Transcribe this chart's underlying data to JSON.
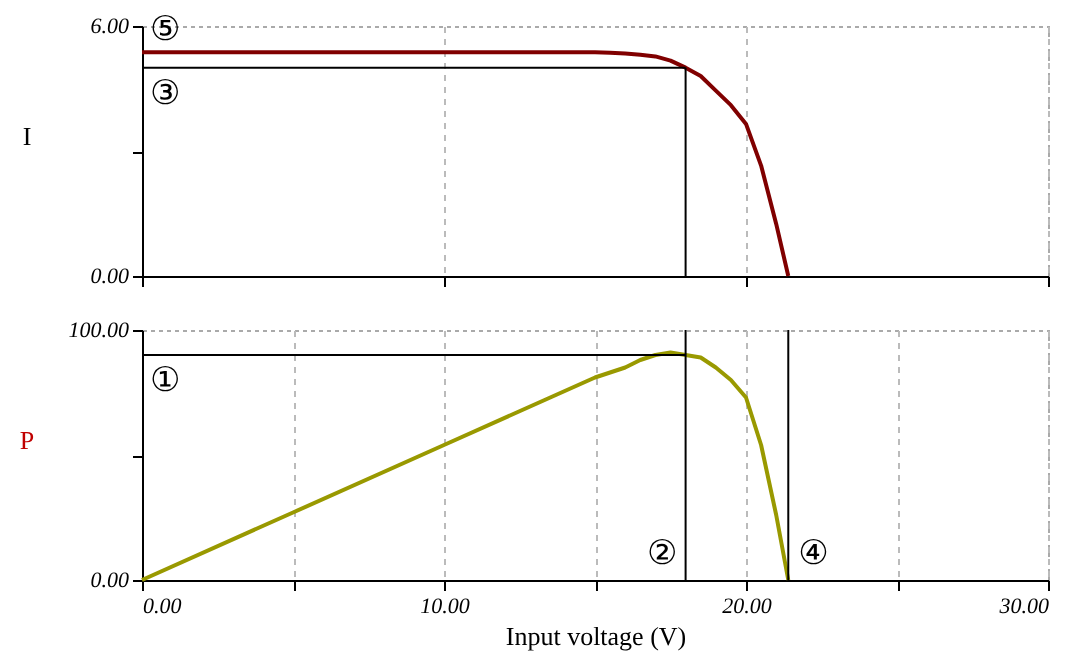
{
  "chart_data": [
    {
      "type": "line",
      "ylabel": "I",
      "xlim": [
        0,
        30
      ],
      "xticks": [
        {
          "value": 0,
          "label": null
        },
        {
          "value": 10,
          "label": null
        },
        {
          "value": 20,
          "label": null
        },
        {
          "value": 30,
          "label": null
        }
      ],
      "ylim": [
        0,
        6
      ],
      "yticks": [
        {
          "value": 0,
          "label": "0.00"
        },
        {
          "value": 3,
          "label": null
        },
        {
          "value": 6,
          "label": "6.00"
        }
      ],
      "tick_labels": "y",
      "grid": "x",
      "series": [
        {
          "color": "#800000",
          "x": [
            0,
            5,
            10,
            15,
            15.5,
            16,
            16.5,
            17,
            17.5,
            18,
            18.5,
            19,
            19.5,
            20,
            20.5,
            21,
            21.4
          ],
          "values": [
            5.37,
            5.37,
            5.37,
            5.37,
            5.36,
            5.34,
            5.31,
            5.27,
            5.17,
            5.0,
            4.8,
            4.45,
            4.1,
            3.65,
            2.65,
            1.25,
            0
          ]
        },
        {
          "color": "#000000",
          "x": [
            0,
            18
          ],
          "values": [
            5.0,
            5.0
          ]
        },
        {
          "color": "#000000",
          "x": [
            18,
            18
          ],
          "values": [
            5.0,
            0
          ]
        }
      ],
      "annotations": [
        {
          "text": "⑤",
          "x": 0,
          "y": 5.37
        },
        {
          "text": "③",
          "x": 0,
          "y": 5.0
        }
      ]
    },
    {
      "type": "line",
      "xlabel": "Input voltage (V)",
      "ylabel": "P",
      "xlim": [
        0,
        30
      ],
      "xticks": [
        {
          "value": 0,
          "label": "0.00"
        },
        {
          "value": 5,
          "label": null
        },
        {
          "value": 10,
          "label": "10.00"
        },
        {
          "value": 15,
          "label": null
        },
        {
          "value": 20,
          "label": "20.00"
        },
        {
          "value": 25,
          "label": null
        },
        {
          "value": 30,
          "label": "30.00"
        }
      ],
      "ylim": [
        0,
        100
      ],
      "yticks": [
        {
          "value": 0,
          "label": "0.00"
        },
        {
          "value": 50,
          "label": null
        },
        {
          "value": 100,
          "label": "100.00"
        }
      ],
      "grid": "x",
      "series": [
        {
          "color": "#999900",
          "x": [
            0,
            5,
            10,
            15,
            15.5,
            16,
            16.5,
            17,
            17.5,
            18,
            18.5,
            19,
            19.5,
            20,
            20.5,
            21,
            21.4
          ],
          "values": [
            0,
            27,
            54,
            81,
            83,
            85,
            88,
            90,
            91,
            90,
            89,
            85,
            80,
            73,
            54,
            26,
            0
          ]
        },
        {
          "color": "#000000",
          "x": [
            0,
            18
          ],
          "values": [
            90,
            90
          ]
        },
        {
          "color": "#000000",
          "x": [
            18,
            18
          ],
          "values": [
            0,
            100
          ]
        },
        {
          "color": "#000000",
          "x": [
            21.4,
            21.4
          ],
          "values": [
            0,
            100
          ]
        }
      ],
      "annotations": [
        {
          "text": "①",
          "x": 0,
          "y": 90
        },
        {
          "text": "②",
          "x": 18,
          "y": 0
        },
        {
          "text": "④",
          "x": 21.4,
          "y": 0
        }
      ]
    }
  ]
}
